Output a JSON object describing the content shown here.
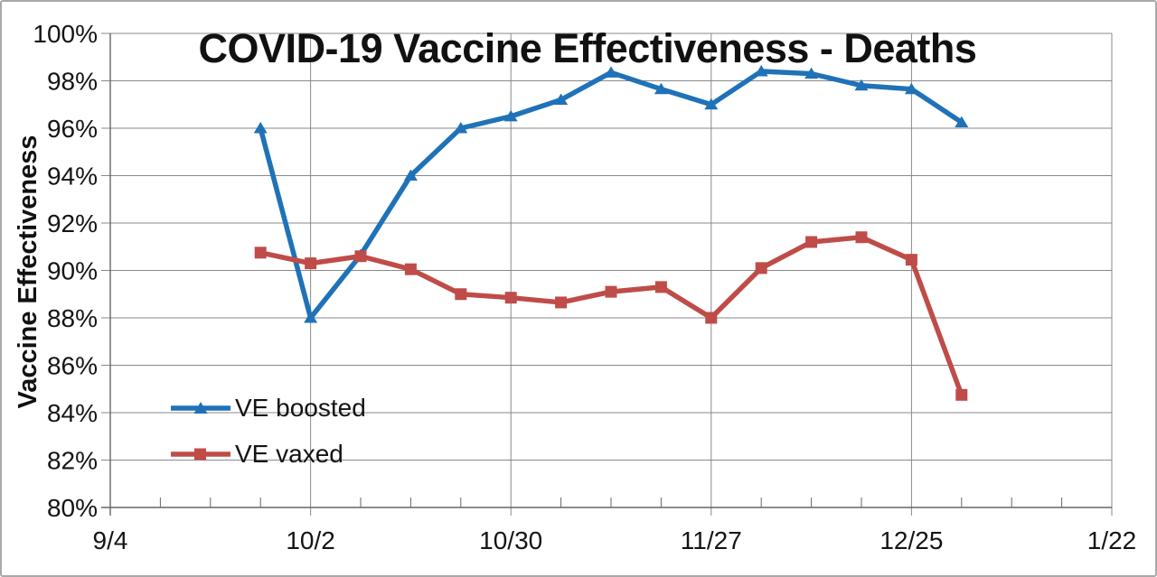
{
  "chart_data": {
    "type": "line",
    "title": "COVID-19 Vaccine Effectiveness - Deaths",
    "ylabel": "Vaccine Effectiveness",
    "ylim": [
      80,
      100
    ],
    "y_tick_step": 2,
    "y_tick_labels": [
      "100%",
      "98%",
      "96%",
      "94%",
      "92%",
      "90%",
      "88%",
      "86%",
      "84%",
      "82%",
      "80%"
    ],
    "x_axis": {
      "weeks_total": 20,
      "major_tick_every": 4,
      "major_tick_labels": [
        "9/4",
        "10/2",
        "10/30",
        "11/27",
        "12/25",
        "1/22"
      ]
    },
    "categories": [
      "9/25",
      "10/2",
      "10/9",
      "10/16",
      "10/23",
      "10/30",
      "11/6",
      "11/13",
      "11/20",
      "11/27",
      "12/4",
      "12/11",
      "12/18",
      "12/25",
      "1/1"
    ],
    "x_week_offsets": [
      3,
      4,
      5,
      6,
      7,
      8,
      9,
      10,
      11,
      12,
      13,
      14,
      15,
      16,
      17
    ],
    "series": [
      {
        "name": "VE boosted",
        "marker": "triangle",
        "color": "#1F72B8",
        "values": [
          96.0,
          88.0,
          90.65,
          94.0,
          96.0,
          96.5,
          97.2,
          98.35,
          97.65,
          97.0,
          98.4,
          98.3,
          97.8,
          97.65,
          96.25
        ]
      },
      {
        "name": "VE vaxed",
        "marker": "square",
        "color": "#BF4C48",
        "values": [
          90.75,
          90.3,
          90.6,
          90.05,
          89.0,
          88.85,
          88.65,
          89.1,
          89.3,
          88.0,
          90.1,
          91.2,
          91.4,
          90.45,
          84.75
        ]
      }
    ],
    "grid": true,
    "legend_position": "inside-bottom-left"
  },
  "colors": {
    "background": "#FFFFFF",
    "figure_border": "#A9A9A9",
    "gridline": "#898989",
    "axis": "#666666",
    "text": "#141414"
  }
}
